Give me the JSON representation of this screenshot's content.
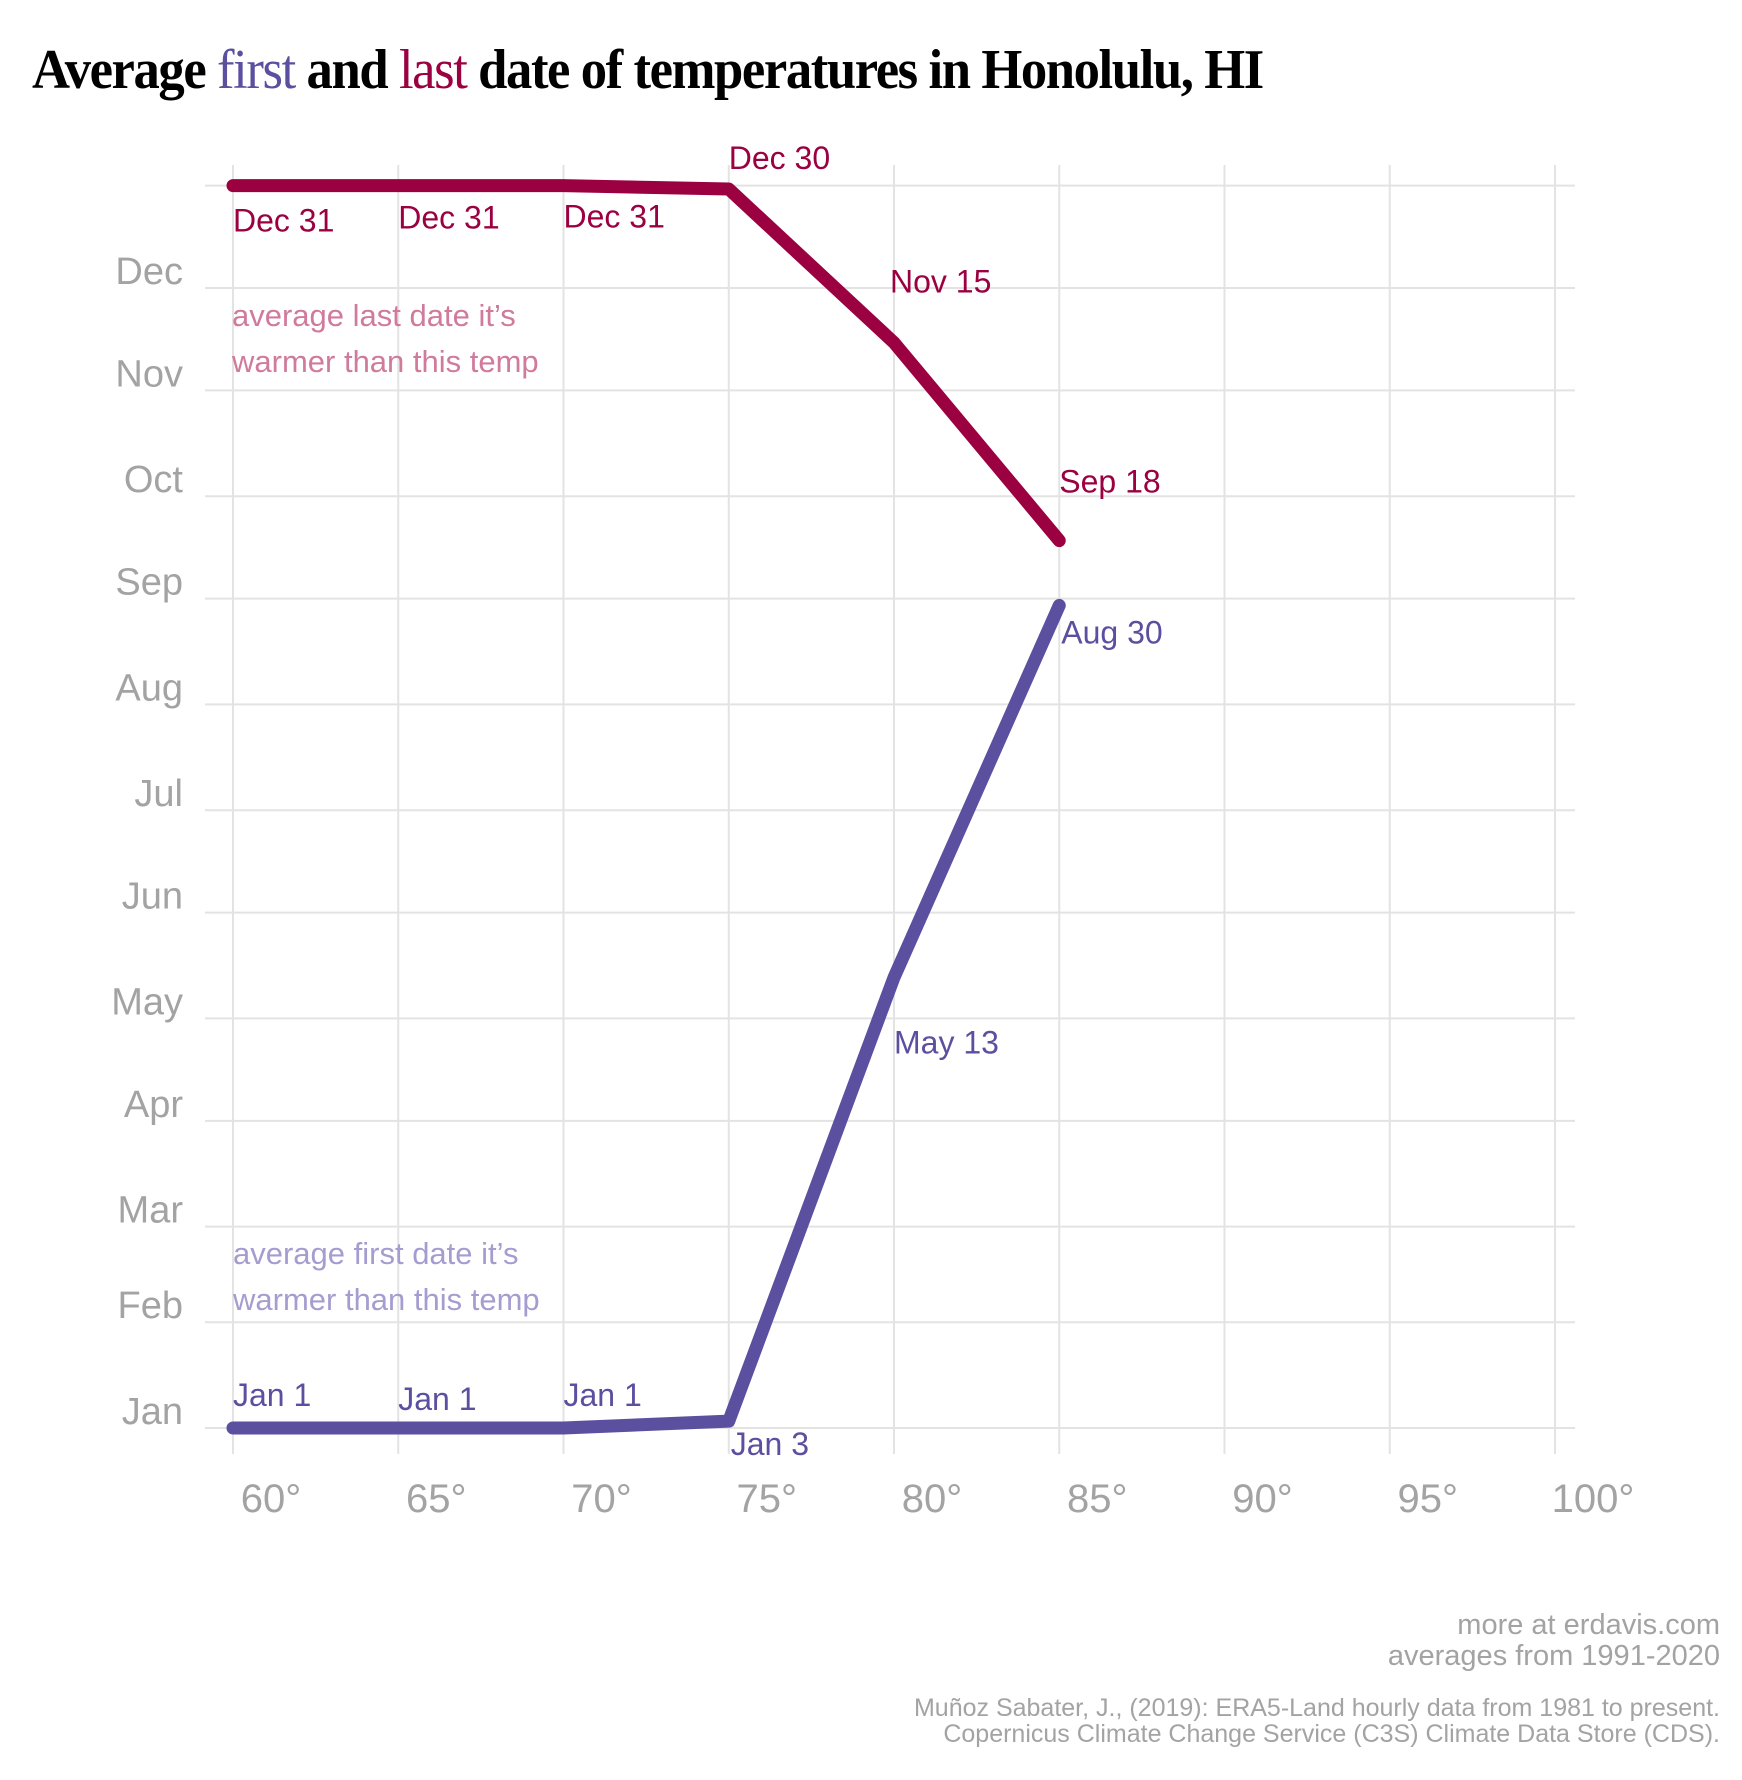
{
  "title": {
    "prefix": "Average ",
    "first_word": "first",
    "middle": " and ",
    "last_word": "last",
    "suffix": " date of temperatures in Honolulu, HI"
  },
  "colors": {
    "first": "#5b4fa0",
    "last": "#9b0041",
    "first_annotation": "#a59dd0",
    "last_annotation": "#d07a9c",
    "axis_text": "#a3a3a3",
    "grid": "#e3e3e3"
  },
  "chart_data": {
    "type": "line",
    "title": "Average first and last date of temperatures in Honolulu, HI",
    "xlabel": "",
    "ylabel": "",
    "x_ticks": [
      60,
      65,
      70,
      75,
      80,
      85,
      90,
      95,
      100
    ],
    "x_tick_labels": [
      "60°",
      "65°",
      "70°",
      "75°",
      "80°",
      "85°",
      "90°",
      "95°",
      "100°"
    ],
    "xlim": [
      60,
      100
    ],
    "y_ticks": [
      {
        "label": "Jan",
        "day": 1
      },
      {
        "label": "Feb",
        "day": 32
      },
      {
        "label": "Mar",
        "day": 60
      },
      {
        "label": "Apr",
        "day": 91
      },
      {
        "label": "May",
        "day": 121
      },
      {
        "label": "Jun",
        "day": 152
      },
      {
        "label": "Jul",
        "day": 182
      },
      {
        "label": "Aug",
        "day": 213
      },
      {
        "label": "Sep",
        "day": 244
      },
      {
        "label": "Oct",
        "day": 274
      },
      {
        "label": "Nov",
        "day": 305
      },
      {
        "label": "Dec",
        "day": 335
      }
    ],
    "ylim_days": [
      1,
      365
    ],
    "grid": true,
    "series": [
      {
        "name": "last",
        "annotation": [
          "average last date it’s",
          "warmer than this temp"
        ],
        "points": [
          {
            "x": 60,
            "day": 365,
            "label": "Dec 31"
          },
          {
            "x": 65,
            "day": 365,
            "label": "Dec 31"
          },
          {
            "x": 70,
            "day": 365,
            "label": "Dec 31"
          },
          {
            "x": 75,
            "day": 364,
            "label": "Dec 30"
          },
          {
            "x": 80,
            "day": 319,
            "label": "Nov 15"
          },
          {
            "x": 85,
            "day": 261,
            "label": "Sep 18"
          }
        ]
      },
      {
        "name": "first",
        "annotation": [
          "average first date it’s",
          "warmer than this temp"
        ],
        "points": [
          {
            "x": 60,
            "day": 1,
            "label": "Jan 1"
          },
          {
            "x": 65,
            "day": 1,
            "label": "Jan 1"
          },
          {
            "x": 70,
            "day": 1,
            "label": "Jan 1"
          },
          {
            "x": 75,
            "day": 3,
            "label": "Jan 3"
          },
          {
            "x": 80,
            "day": 133,
            "label": "May 13"
          },
          {
            "x": 85,
            "day": 242,
            "label": "Aug 30"
          }
        ]
      }
    ]
  },
  "footer": {
    "line1": "more at erdavis.com",
    "line2": "averages from 1991-2020",
    "citation1": "Muñoz Sabater, J., (2019): ERA5-Land hourly data from 1981 to present.",
    "citation2": "Copernicus Climate Change Service (C3S) Climate Data Store (CDS)."
  }
}
